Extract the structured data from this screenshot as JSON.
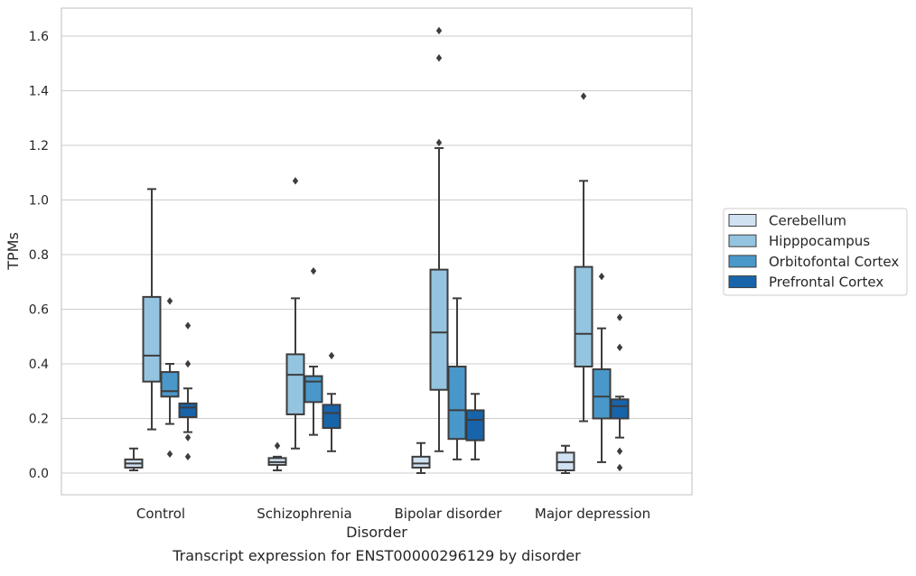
{
  "caption": "Transcript expression for ENST00000296129 by disorder",
  "chart_data": {
    "type": "box",
    "xlabel": "Disorder",
    "ylabel": "TPMs",
    "categories": [
      "Control",
      "Schizophrenia",
      "Bipolar disorder",
      "Major depression"
    ],
    "ylim": [
      -0.08,
      1.7
    ],
    "yticks": [
      0.0,
      0.2,
      0.4,
      0.6,
      0.8,
      1.0,
      1.2,
      1.4,
      1.6
    ],
    "ytick_labels": [
      "0.0",
      "0.2",
      "0.4",
      "0.6",
      "0.8",
      "1.0",
      "1.2",
      "1.4",
      "1.6"
    ],
    "grid": true,
    "legend_position": "right",
    "series": [
      {
        "name": "Cerebellum",
        "color": "#d0e1f2",
        "boxes": [
          {
            "whislo": 0.01,
            "q1": 0.02,
            "med": 0.035,
            "q3": 0.05,
            "whishi": 0.09,
            "fliers": []
          },
          {
            "whislo": 0.01,
            "q1": 0.03,
            "med": 0.04,
            "q3": 0.055,
            "whishi": 0.06,
            "fliers": [
              0.1
            ]
          },
          {
            "whislo": 0.0,
            "q1": 0.02,
            "med": 0.035,
            "q3": 0.06,
            "whishi": 0.11,
            "fliers": []
          },
          {
            "whislo": 0.0,
            "q1": 0.01,
            "med": 0.04,
            "q3": 0.075,
            "whishi": 0.1,
            "fliers": []
          }
        ]
      },
      {
        "name": "Hipppocampus",
        "color": "#94c4df",
        "boxes": [
          {
            "whislo": 0.16,
            "q1": 0.335,
            "med": 0.43,
            "q3": 0.645,
            "whishi": 1.04,
            "fliers": []
          },
          {
            "whislo": 0.09,
            "q1": 0.215,
            "med": 0.36,
            "q3": 0.435,
            "whishi": 0.64,
            "fliers": [
              1.07
            ]
          },
          {
            "whislo": 0.08,
            "q1": 0.305,
            "med": 0.515,
            "q3": 0.745,
            "whishi": 1.19,
            "fliers": [
              1.21,
              1.52,
              1.62
            ]
          },
          {
            "whislo": 0.19,
            "q1": 0.39,
            "med": 0.51,
            "q3": 0.755,
            "whishi": 1.07,
            "fliers": [
              1.38
            ]
          }
        ]
      },
      {
        "name": "Orbitofontal Cortex",
        "color": "#4a98c9",
        "boxes": [
          {
            "whislo": 0.18,
            "q1": 0.28,
            "med": 0.3,
            "q3": 0.37,
            "whishi": 0.4,
            "fliers": [
              0.07,
              0.63
            ]
          },
          {
            "whislo": 0.14,
            "q1": 0.26,
            "med": 0.335,
            "q3": 0.355,
            "whishi": 0.39,
            "fliers": [
              0.74
            ]
          },
          {
            "whislo": 0.05,
            "q1": 0.125,
            "med": 0.23,
            "q3": 0.39,
            "whishi": 0.64,
            "fliers": []
          },
          {
            "whislo": 0.04,
            "q1": 0.2,
            "med": 0.28,
            "q3": 0.38,
            "whishi": 0.53,
            "fliers": [
              0.72
            ]
          }
        ]
      },
      {
        "name": "Prefrontal Cortex",
        "color": "#1764ab",
        "boxes": [
          {
            "whislo": 0.15,
            "q1": 0.205,
            "med": 0.24,
            "q3": 0.255,
            "whishi": 0.31,
            "fliers": [
              0.06,
              0.13,
              0.4,
              0.54
            ]
          },
          {
            "whislo": 0.08,
            "q1": 0.165,
            "med": 0.22,
            "q3": 0.25,
            "whishi": 0.29,
            "fliers": [
              0.43
            ]
          },
          {
            "whislo": 0.05,
            "q1": 0.12,
            "med": 0.195,
            "q3": 0.23,
            "whishi": 0.29,
            "fliers": []
          },
          {
            "whislo": 0.13,
            "q1": 0.2,
            "med": 0.245,
            "q3": 0.27,
            "whishi": 0.28,
            "fliers": [
              0.02,
              0.08,
              0.46,
              0.57
            ]
          }
        ]
      }
    ]
  }
}
